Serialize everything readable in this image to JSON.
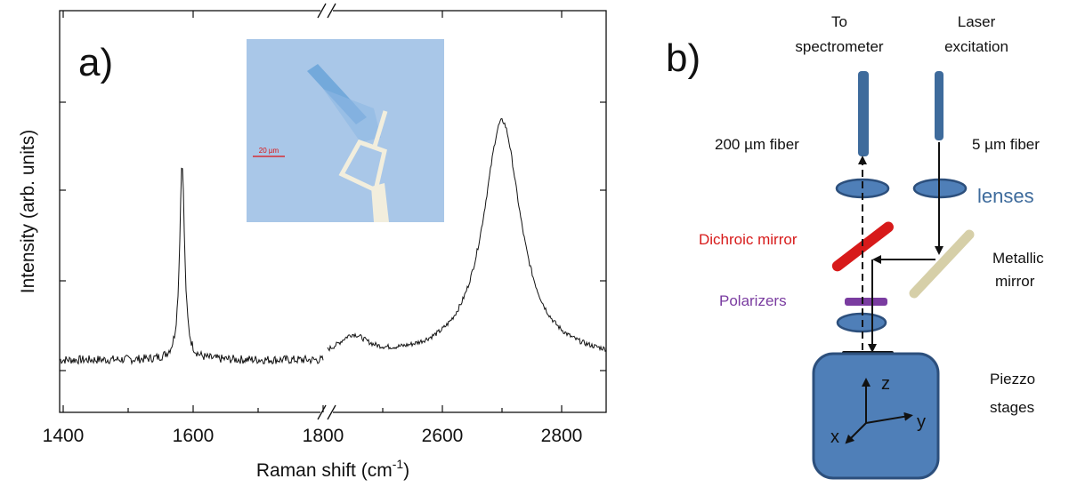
{
  "panel_a": {
    "label": "a)",
    "chart_data": {
      "type": "line",
      "xlabel": "Raman shift (cm",
      "xlabel_sup": "-1",
      "xlabel_tail": ")",
      "ylabel": "Intensity (arb. units)",
      "broken_x_axis": true,
      "segments": [
        {
          "xlim": [
            1400,
            1800
          ],
          "ticks": [
            "1400",
            "1600",
            "1800"
          ]
        },
        {
          "xlim": [
            2400,
            2800
          ],
          "ticks": [
            "2600",
            "2800"
          ]
        }
      ],
      "y_ticks_labeled": false,
      "grid": false,
      "series": [
        {
          "peaks": [
            {
              "x": 1583,
              "relative_height": 0.79
            },
            {
              "x": 2450,
              "relative_height": 0.08
            },
            {
              "x": 2700,
              "relative_height": 0.95
            }
          ],
          "baseline": 0.0
        }
      ]
    },
    "inset": {
      "scale_label": "20 µm"
    }
  },
  "panel_b": {
    "label": "b)",
    "labels": {
      "to_spectrometer": [
        "To",
        "spectrometer"
      ],
      "laser_excitation": [
        "Laser",
        "excitation"
      ],
      "fiber_200": "200 µm fiber",
      "fiber_5": "5 µm fiber",
      "lenses": "lenses",
      "dichroic": "Dichroic mirror",
      "metallic": [
        "Metallic",
        "mirror"
      ],
      "polarizers": "Polarizers",
      "piezzo": [
        "Piezzo",
        "stages"
      ],
      "axis_x": "x",
      "axis_y": "y",
      "axis_z": "z"
    },
    "colors": {
      "fiber": "#3e6b9c",
      "lens": "#4f7fb8",
      "dichroic": "#d71a1a",
      "metallic": "#d6cfa8",
      "polarizer": "#7a3ca0",
      "stage": "#4f7fb8",
      "lenses_text": "#3e6b9c"
    }
  }
}
